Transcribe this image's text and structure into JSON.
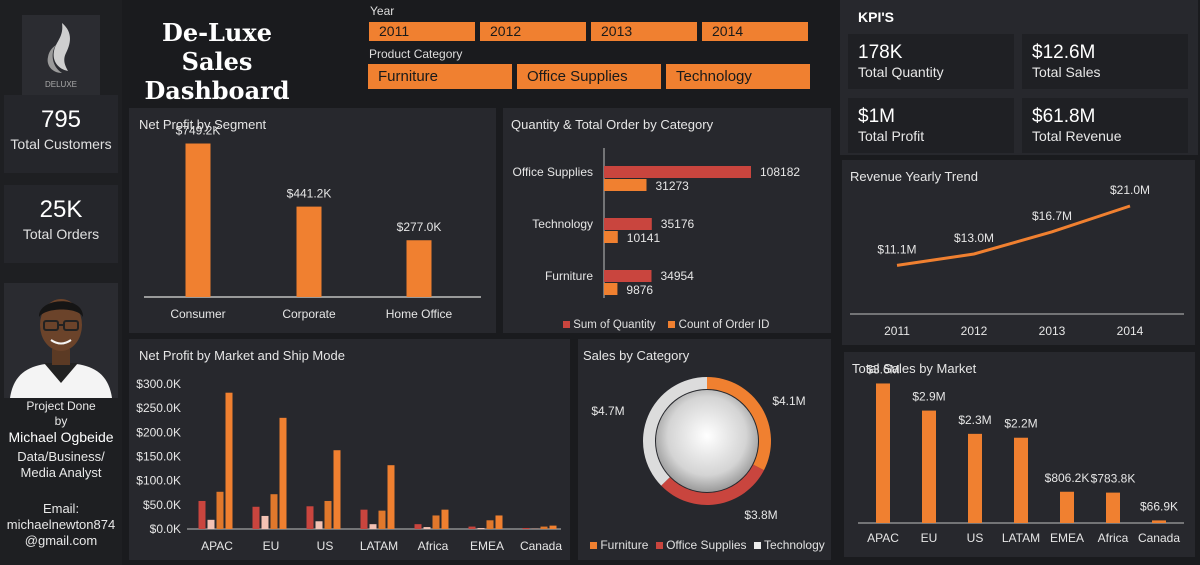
{
  "header": {
    "title_line1": "De-Luxe Sales",
    "title_line2": "Dashboard",
    "logo_text": "DELUXE",
    "year_label": "Year",
    "years": [
      "2011",
      "2012",
      "2013",
      "2014"
    ],
    "category_label": "Product Category",
    "categories": [
      "Furniture",
      "Office Supplies",
      "Technology"
    ]
  },
  "sidebar": {
    "customers_value": "795",
    "customers_label": "Total Customers",
    "orders_value": "25K",
    "orders_label": "Total Orders",
    "credit_line1": "Project Done",
    "credit_line2": "by",
    "author_name": "Michael Ogbeide",
    "role_line1": "Data/Business/",
    "role_line2": "Media Analyst",
    "email_label": "Email:",
    "email_line1": "michaelnewton874",
    "email_line2": "@gmail.com"
  },
  "kpis": {
    "title": "KPI'S",
    "cards": [
      {
        "value": "178K",
        "label": "Total Quantity"
      },
      {
        "value": "$12.6M",
        "label": "Total Sales"
      },
      {
        "value": "$1M",
        "label": "Total Profit"
      },
      {
        "value": "$61.8M",
        "label": "Total Revenue"
      }
    ]
  },
  "colors": {
    "orange": "#f08030",
    "red": "#c9453e",
    "pink": "#f3c2b4",
    "light": "#d9d9d9",
    "panel": "#27282d"
  },
  "chart_data": [
    {
      "id": "segment",
      "type": "bar",
      "title": "Net Profit by Segment",
      "categories": [
        "Consumer",
        "Corporate",
        "Home Office"
      ],
      "values": [
        749.2,
        441.2,
        277.0
      ],
      "labels": [
        "$749.2K",
        "$441.2K",
        "$277.0K"
      ],
      "ylim": [
        0,
        800
      ]
    },
    {
      "id": "qty",
      "type": "bar",
      "orientation": "horizontal",
      "title": "Quantity & Total Order by Category",
      "categories": [
        "Office Supplies",
        "Technology",
        "Furniture"
      ],
      "series": [
        {
          "name": "Sum of Quantity",
          "values": [
            108182,
            35176,
            34954
          ]
        },
        {
          "name": "Count of Order ID",
          "values": [
            31273,
            10141,
            9876
          ]
        }
      ],
      "xlim": [
        0,
        140000
      ]
    },
    {
      "id": "trend",
      "type": "line",
      "title": "Revenue Yearly Trend",
      "x": [
        "2011",
        "2012",
        "2013",
        "2014"
      ],
      "values": [
        11.1,
        13.0,
        16.7,
        21.0
      ],
      "labels": [
        "$11.1M",
        "$13.0M",
        "$16.7M",
        "$21.0M"
      ],
      "ylim": [
        3,
        24
      ]
    },
    {
      "id": "market_ship",
      "type": "bar",
      "title": "Net Profit by Market and Ship Mode",
      "categories": [
        "APAC",
        "EU",
        "US",
        "LATAM",
        "Africa",
        "EMEA",
        "Canada"
      ],
      "series": [
        {
          "values": [
            58,
            46,
            47,
            40,
            10,
            5,
            2
          ]
        },
        {
          "values": [
            19,
            27,
            16,
            10,
            4,
            2,
            1
          ]
        },
        {
          "values": [
            77,
            72,
            58,
            38,
            28,
            18,
            5
          ]
        },
        {
          "values": [
            282,
            230,
            163,
            132,
            40,
            28,
            7
          ]
        }
      ],
      "yticks": [
        "$0.0K",
        "$50.0K",
        "$100.0K",
        "$150.0K",
        "$200.0K",
        "$250.0K",
        "$300.0K"
      ],
      "ylim": [
        0,
        300
      ]
    },
    {
      "id": "sales_cat",
      "type": "pie",
      "title": "Sales by Category",
      "categories": [
        "Furniture",
        "Office Supplies",
        "Technology"
      ],
      "values": [
        4.1,
        3.8,
        4.7
      ],
      "labels": [
        "$4.1M",
        "$3.8M",
        "$4.7M"
      ]
    },
    {
      "id": "market_sales",
      "type": "bar",
      "title": "Total Sales by Market",
      "categories": [
        "APAC",
        "EU",
        "US",
        "LATAM",
        "EMEA",
        "Africa",
        "Canada"
      ],
      "values": [
        3.6,
        2.9,
        2.3,
        2.2,
        0.8062,
        0.7838,
        0.0669
      ],
      "labels": [
        "$3.6M",
        "$2.9M",
        "$2.3M",
        "$2.2M",
        "$806.2K",
        "$783.8K",
        "$66.9K"
      ],
      "ylim": [
        0,
        4
      ]
    }
  ]
}
